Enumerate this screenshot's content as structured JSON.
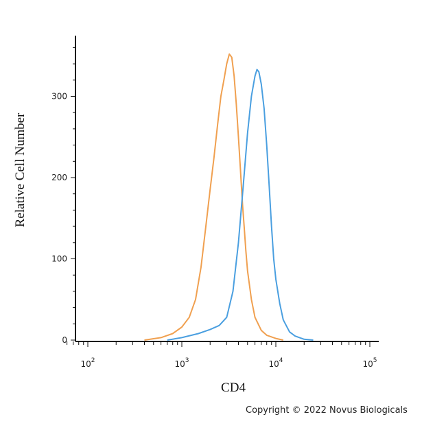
{
  "chart_data": {
    "type": "line",
    "xlabel": "CD4",
    "ylabel": "Relative Cell Number",
    "x_scale": "log",
    "xlim": [
      60,
      100000
    ],
    "ylim": [
      0,
      375
    ],
    "x_ticks": [
      {
        "value": 100,
        "base": "10",
        "exp": "2"
      },
      {
        "value": 1000,
        "base": "10",
        "exp": "3"
      },
      {
        "value": 10000,
        "base": "10",
        "exp": "4"
      },
      {
        "value": 100000,
        "base": "10",
        "exp": "5"
      }
    ],
    "y_ticks": [
      0,
      100,
      200,
      300
    ],
    "series": [
      {
        "color": "#f0a050",
        "points": [
          [
            400,
            0
          ],
          [
            600,
            3
          ],
          [
            800,
            8
          ],
          [
            1000,
            16
          ],
          [
            1200,
            28
          ],
          [
            1400,
            50
          ],
          [
            1600,
            90
          ],
          [
            1800,
            140
          ],
          [
            2000,
            185
          ],
          [
            2200,
            225
          ],
          [
            2400,
            265
          ],
          [
            2600,
            300
          ],
          [
            2800,
            320
          ],
          [
            3000,
            340
          ],
          [
            3200,
            352
          ],
          [
            3400,
            348
          ],
          [
            3600,
            325
          ],
          [
            3800,
            290
          ],
          [
            4000,
            250
          ],
          [
            4200,
            210
          ],
          [
            4400,
            170
          ],
          [
            4600,
            140
          ],
          [
            4800,
            110
          ],
          [
            5000,
            85
          ],
          [
            5500,
            50
          ],
          [
            6000,
            28
          ],
          [
            7000,
            12
          ],
          [
            8000,
            6
          ],
          [
            10000,
            2
          ],
          [
            12000,
            0
          ]
        ]
      },
      {
        "color": "#4a9fe0",
        "points": [
          [
            700,
            0
          ],
          [
            1000,
            3
          ],
          [
            1500,
            8
          ],
          [
            2000,
            13
          ],
          [
            2500,
            18
          ],
          [
            3000,
            28
          ],
          [
            3500,
            60
          ],
          [
            4000,
            120
          ],
          [
            4500,
            190
          ],
          [
            5000,
            255
          ],
          [
            5500,
            300
          ],
          [
            6000,
            325
          ],
          [
            6300,
            333
          ],
          [
            6600,
            330
          ],
          [
            7000,
            315
          ],
          [
            7500,
            285
          ],
          [
            8000,
            240
          ],
          [
            8500,
            190
          ],
          [
            9000,
            140
          ],
          [
            9500,
            100
          ],
          [
            10000,
            75
          ],
          [
            11000,
            45
          ],
          [
            12000,
            25
          ],
          [
            14000,
            10
          ],
          [
            16000,
            5
          ],
          [
            20000,
            1
          ],
          [
            25000,
            0
          ]
        ]
      }
    ]
  },
  "footer": {
    "copyright": "Copyright © 2022 Novus Biologicals"
  }
}
